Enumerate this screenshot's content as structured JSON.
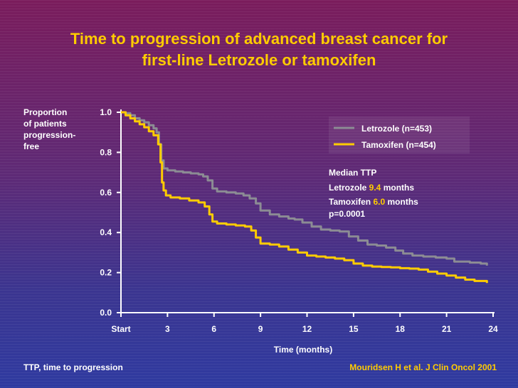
{
  "title": {
    "line1": "Time to progression of advanced breast cancer for",
    "line2": "first-line Letrozole or tamoxifen"
  },
  "chart_data": {
    "type": "line",
    "ylabel_lines": [
      "Proportion",
      "of patients",
      "progression-",
      "free"
    ],
    "xlabel": "Time (months)",
    "x_ticks": [
      0,
      3,
      6,
      9,
      12,
      15,
      18,
      21,
      24
    ],
    "x_tick_labels": [
      "Start",
      "3",
      "6",
      "9",
      "12",
      "15",
      "18",
      "21",
      "24"
    ],
    "y_ticks": [
      0,
      0.2,
      0.4,
      0.6,
      0.8,
      1.0
    ],
    "y_tick_labels": [
      "0.0",
      "0.2",
      "0.4",
      "0.6",
      "0.8",
      "1.0"
    ],
    "xlim": [
      0,
      24
    ],
    "ylim": [
      0,
      1.0
    ],
    "series": [
      {
        "name": "Letrozole (n=453)",
        "color": "#8c8c94",
        "x": [
          0,
          0.3,
          0.6,
          0.9,
          1.2,
          1.5,
          1.8,
          2.1,
          2.3,
          2.45,
          2.6,
          2.75,
          3.0,
          3.5,
          4.0,
          4.5,
          5.0,
          5.3,
          5.6,
          5.9,
          6.2,
          6.8,
          7.4,
          7.9,
          8.3,
          8.7,
          9.0,
          9.6,
          10.2,
          10.8,
          11.2,
          11.7,
          12.3,
          12.9,
          13.5,
          14.1,
          14.7,
          15.3,
          15.9,
          16.5,
          17.1,
          17.7,
          18.2,
          18.8,
          19.5,
          20.3,
          21.0,
          21.5,
          22.5,
          23.2,
          23.6
        ],
        "y": [
          1.0,
          0.995,
          0.985,
          0.97,
          0.96,
          0.95,
          0.935,
          0.92,
          0.9,
          0.84,
          0.76,
          0.72,
          0.71,
          0.705,
          0.7,
          0.695,
          0.69,
          0.68,
          0.66,
          0.62,
          0.605,
          0.6,
          0.595,
          0.585,
          0.57,
          0.545,
          0.51,
          0.49,
          0.48,
          0.47,
          0.465,
          0.45,
          0.43,
          0.415,
          0.41,
          0.405,
          0.38,
          0.36,
          0.34,
          0.335,
          0.325,
          0.31,
          0.295,
          0.285,
          0.28,
          0.275,
          0.27,
          0.255,
          0.25,
          0.245,
          0.235
        ]
      },
      {
        "name": "Tamoxifen (n=454)",
        "color": "#ffcc00",
        "x": [
          0,
          0.3,
          0.6,
          0.9,
          1.2,
          1.5,
          1.8,
          2.1,
          2.4,
          2.55,
          2.65,
          2.75,
          2.9,
          3.2,
          3.8,
          4.4,
          5.0,
          5.4,
          5.7,
          5.9,
          6.2,
          6.8,
          7.4,
          8.0,
          8.4,
          8.7,
          9.0,
          9.6,
          10.2,
          10.8,
          11.4,
          12.0,
          12.6,
          13.2,
          13.8,
          14.4,
          15.0,
          15.6,
          16.2,
          16.8,
          17.4,
          18.0,
          18.6,
          19.2,
          19.8,
          20.4,
          21.0,
          21.6,
          22.2,
          22.8,
          23.6
        ],
        "y": [
          1.0,
          0.985,
          0.97,
          0.955,
          0.94,
          0.925,
          0.905,
          0.885,
          0.84,
          0.75,
          0.65,
          0.61,
          0.585,
          0.575,
          0.57,
          0.56,
          0.55,
          0.53,
          0.49,
          0.455,
          0.445,
          0.44,
          0.435,
          0.43,
          0.41,
          0.375,
          0.345,
          0.34,
          0.33,
          0.315,
          0.3,
          0.285,
          0.28,
          0.275,
          0.27,
          0.262,
          0.245,
          0.235,
          0.23,
          0.228,
          0.226,
          0.222,
          0.22,
          0.215,
          0.205,
          0.195,
          0.185,
          0.175,
          0.165,
          0.158,
          0.148
        ]
      }
    ],
    "legend": {
      "position": "top-right",
      "entries": [
        "Letrozole (n=453)",
        "Tamoxifen (n=454)"
      ]
    },
    "annotation": {
      "heading": "Median TTP",
      "letrozole_prefix": "Letrozole ",
      "letrozole_value": "9.4",
      "letrozole_suffix": " months",
      "tamoxifen_prefix": "Tamoxifen ",
      "tamoxifen_value": "6.0",
      "tamoxifen_suffix": " months",
      "pvalue": "p=0.0001"
    }
  },
  "footer": {
    "left": "TTP, time to progression",
    "right": "Mouridsen H et al. J Clin Oncol 2001"
  }
}
